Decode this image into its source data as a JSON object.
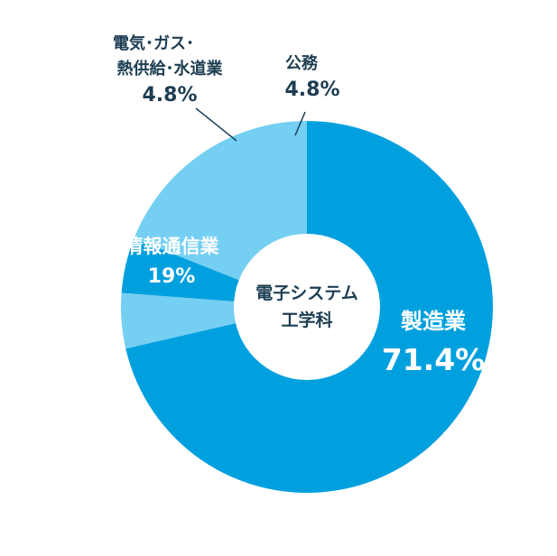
{
  "chart_data": {
    "type": "pie",
    "center_label": [
      "電子システム",
      "工学科"
    ],
    "categories": [
      "製造業",
      "情報通信業",
      "電気･ガス･熱供給･水道業",
      "公務"
    ],
    "values": [
      71.4,
      19,
      4.8,
      4.8
    ],
    "series": [
      {
        "name": "",
        "values": [
          71.4,
          19,
          4.8,
          4.8
        ]
      }
    ],
    "slices": [
      {
        "label_lines": [
          "製造業"
        ],
        "percent_text": "71.4%",
        "value": 71.4,
        "color": "#00a0df",
        "label_color": "#ffffff"
      },
      {
        "label_lines": [
          "公務"
        ],
        "percent_text": "4.8%",
        "value": 4.8,
        "color": "#74cff2",
        "label_color": "#1d3d52"
      },
      {
        "label_lines": [
          "電気･ガス･",
          "熱供給･水道業"
        ],
        "percent_text": "4.8%",
        "value": 4.8,
        "color": "#00a0df",
        "label_color": "#1d3d52"
      },
      {
        "label_lines": [
          "情報通信業"
        ],
        "percent_text": "19%",
        "value": 19,
        "color": "#74cff2",
        "label_color": "#ffffff"
      }
    ],
    "colors": {
      "dark": "#00a0df",
      "light": "#74cff2",
      "text_dark": "#1d3d52",
      "leader": "#1d3d52"
    }
  }
}
